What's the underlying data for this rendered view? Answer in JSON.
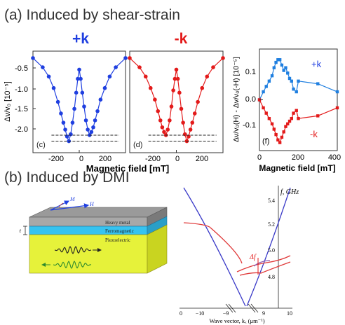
{
  "sections": {
    "a_title": "(a) Induced by shear-strain",
    "b_title": "(b) Induced by DMI"
  },
  "panel_c": {
    "label": "(c)",
    "header": "+k",
    "ylabel": "Δv/v₀ [10⁻⁵]",
    "yticks": [
      "-0.5",
      "-1.0",
      "-1.5",
      "-2.0"
    ],
    "xticks": [
      "-200",
      "0",
      "200"
    ],
    "color": "#1f3fe0"
  },
  "panel_d": {
    "label": "(d)",
    "header": "-k",
    "xticks": [
      "-200",
      "0",
      "200"
    ],
    "color": "#e31a1a"
  },
  "shared_xlabel": "Magnetic field [mT]",
  "panel_f": {
    "label": "(f)",
    "ylabel": "Δv/v₀(H) - Δv/v₀(-H) [10⁻⁵]",
    "xlabel": "Magnetic field [mT]",
    "yticks": [
      "0.1",
      "0.0",
      "-0.1"
    ],
    "xticks": [
      "0",
      "200",
      "400"
    ],
    "plus_label": "+k",
    "minus_label": "-k"
  },
  "diagram": {
    "layers": [
      "Heavy metal",
      "Ferromagnetic",
      "Piezoelectric"
    ],
    "thickness_label": "t",
    "m_label": "M",
    "h_label": "H"
  },
  "dispersion": {
    "ylabel": "f, GHz",
    "xlabel": "Wave vector, kₓ (μm⁻¹)",
    "yticks": [
      "5.4",
      "5.2",
      "5.0",
      "4.8"
    ],
    "xticks": [
      "0",
      "−10",
      "−9",
      "9",
      "10"
    ],
    "delta_label": "Δf"
  },
  "chart_data": [
    {
      "type": "line",
      "title": "+k",
      "xlabel": "Magnetic field [mT]",
      "ylabel": "Δv/v₀ [10⁻⁵]",
      "xlim": [
        -380,
        380
      ],
      "ylim": [
        -2.45,
        -0.25
      ],
      "series": [
        {
          "x": [
            -380,
            -300,
            -250,
            -210,
            -175,
            -150,
            -130,
            -115,
            -100,
            -85,
            -70,
            -55,
            -40,
            -25,
            -12,
            0,
            12,
            25,
            40,
            55,
            70,
            85,
            100,
            115,
            130,
            150,
            175,
            210,
            250,
            300,
            380
          ],
          "y": [
            -0.4,
            -0.6,
            -0.8,
            -1.05,
            -1.35,
            -1.6,
            -1.8,
            -1.95,
            -2.1,
            -2.2,
            -2.05,
            -1.8,
            -1.5,
            -1.15,
            -0.85,
            -0.65,
            -0.85,
            -1.15,
            -1.45,
            -1.75,
            -1.95,
            -2.07,
            -2.0,
            -1.9,
            -1.75,
            -1.55,
            -1.3,
            -1.05,
            -0.8,
            -0.6,
            -0.4
          ]
        }
      ]
    },
    {
      "type": "line",
      "title": "-k",
      "xlabel": "Magnetic field [mT]",
      "xlim": [
        -380,
        380
      ],
      "ylim": [
        -2.45,
        -0.25
      ],
      "series": [
        {
          "x": [
            -380,
            -300,
            -250,
            -210,
            -175,
            -150,
            -130,
            -115,
            -100,
            -85,
            -70,
            -55,
            -40,
            -25,
            -12,
            0,
            12,
            25,
            40,
            55,
            70,
            85,
            100,
            115,
            130,
            150,
            175,
            210,
            250,
            300,
            380
          ],
          "y": [
            -0.4,
            -0.6,
            -0.8,
            -1.05,
            -1.3,
            -1.55,
            -1.75,
            -1.9,
            -2.0,
            -2.07,
            -1.95,
            -1.75,
            -1.45,
            -1.1,
            -0.85,
            -0.65,
            -0.85,
            -1.15,
            -1.5,
            -1.8,
            -2.05,
            -2.2,
            -2.1,
            -1.95,
            -1.8,
            -1.6,
            -1.35,
            -1.05,
            -0.8,
            -0.6,
            -0.4
          ]
        }
      ]
    },
    {
      "type": "line",
      "xlabel": "Magnetic field [mT]",
      "ylabel": "Δv/v₀(H) - Δv/v₀(-H) [10⁻⁵]",
      "xlim": [
        0,
        400
      ],
      "ylim": [
        -0.19,
        0.19
      ],
      "series": [
        {
          "name": "+k",
          "x": [
            0,
            20,
            35,
            50,
            65,
            75,
            85,
            95,
            105,
            115,
            125,
            135,
            145,
            155,
            165,
            175,
            190,
            200,
            300,
            400
          ],
          "y": [
            0,
            0.03,
            0.05,
            0.07,
            0.09,
            0.12,
            0.14,
            0.15,
            0.15,
            0.13,
            0.11,
            0.12,
            0.1,
            0.08,
            0.07,
            0.04,
            0.03,
            0.07,
            0.06,
            0.03
          ]
        },
        {
          "name": "-k",
          "x": [
            0,
            20,
            35,
            50,
            65,
            75,
            85,
            95,
            105,
            115,
            125,
            135,
            145,
            155,
            165,
            175,
            190,
            200,
            300,
            400
          ],
          "y": [
            0,
            -0.03,
            -0.05,
            -0.07,
            -0.09,
            -0.11,
            -0.13,
            -0.15,
            -0.16,
            -0.14,
            -0.12,
            -0.1,
            -0.09,
            -0.08,
            -0.07,
            -0.05,
            -0.04,
            -0.07,
            -0.06,
            -0.03
          ]
        }
      ]
    }
  ]
}
